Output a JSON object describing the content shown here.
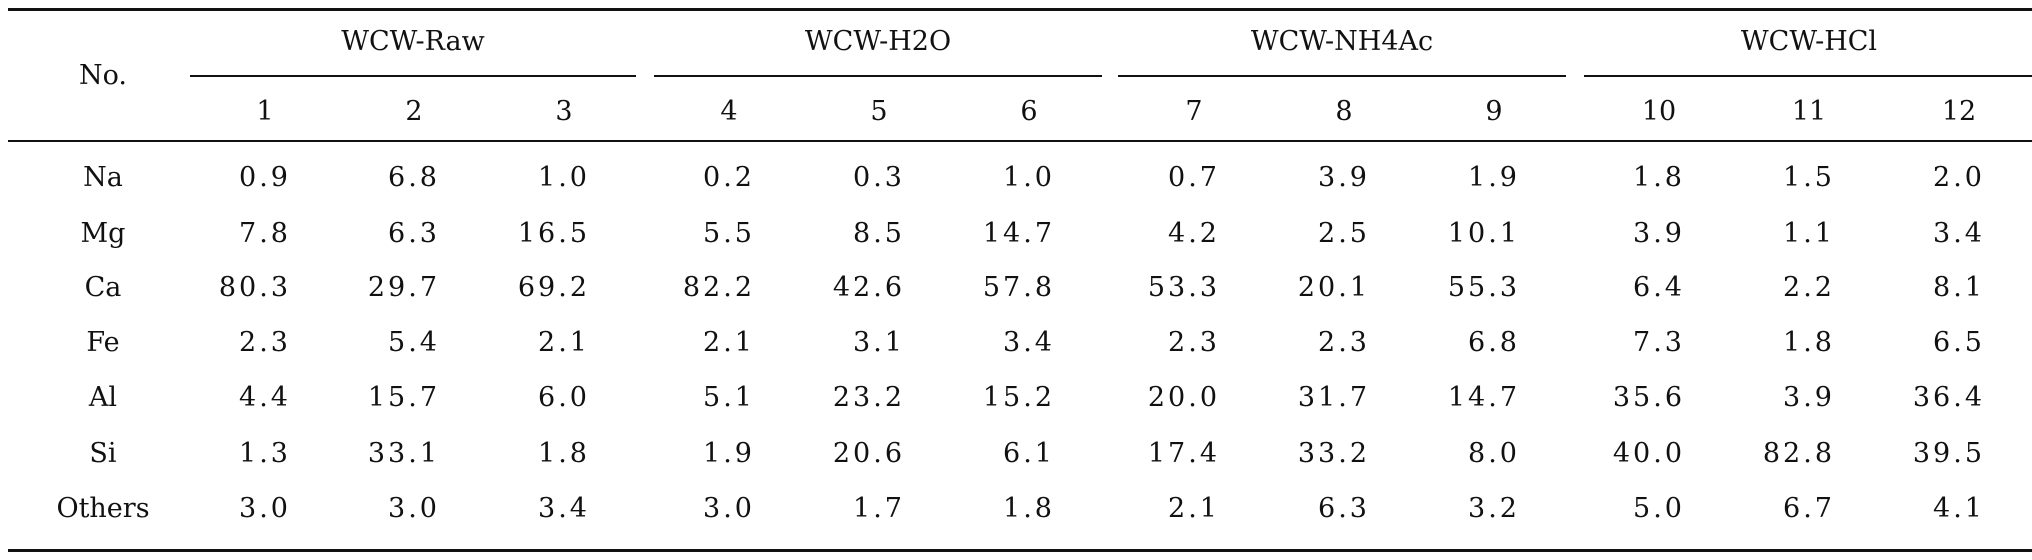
{
  "table": {
    "row_header": "No.",
    "groups": [
      {
        "label": "WCW-Raw",
        "columns": [
          "1",
          "2",
          "3"
        ]
      },
      {
        "label": "WCW-H2O",
        "columns": [
          "4",
          "5",
          "6"
        ]
      },
      {
        "label": "WCW-NH4Ac",
        "columns": [
          "7",
          "8",
          "9"
        ]
      },
      {
        "label": "WCW-HCl",
        "columns": [
          "10",
          "11",
          "12"
        ]
      }
    ],
    "rows": [
      {
        "label": "Na",
        "values": [
          "0.9",
          "6.8",
          "1.0",
          "0.2",
          "0.3",
          "1.0",
          "0.7",
          "3.9",
          "1.9",
          "1.8",
          "1.5",
          "2.0"
        ]
      },
      {
        "label": "Mg",
        "values": [
          "7.8",
          "6.3",
          "16.5",
          "5.5",
          "8.5",
          "14.7",
          "4.2",
          "2.5",
          "10.1",
          "3.9",
          "1.1",
          "3.4"
        ]
      },
      {
        "label": "Ca",
        "values": [
          "80.3",
          "29.7",
          "69.2",
          "82.2",
          "42.6",
          "57.8",
          "53.3",
          "20.1",
          "55.3",
          "6.4",
          "2.2",
          "8.1"
        ]
      },
      {
        "label": "Fe",
        "values": [
          "2.3",
          "5.4",
          "2.1",
          "2.1",
          "3.1",
          "3.4",
          "2.3",
          "2.3",
          "6.8",
          "7.3",
          "1.8",
          "6.5"
        ]
      },
      {
        "label": "Al",
        "values": [
          "4.4",
          "15.7",
          "6.0",
          "5.1",
          "23.2",
          "15.2",
          "20.0",
          "31.7",
          "14.7",
          "35.6",
          "3.9",
          "36.4"
        ]
      },
      {
        "label": "Si",
        "values": [
          "1.3",
          "33.1",
          "1.8",
          "1.9",
          "20.6",
          "6.1",
          "17.4",
          "33.2",
          "8.0",
          "40.0",
          "82.8",
          "39.5"
        ]
      },
      {
        "label": "Others",
        "values": [
          "3.0",
          "3.0",
          "3.4",
          "3.0",
          "1.7",
          "1.8",
          "2.1",
          "6.3",
          "3.2",
          "5.0",
          "6.7",
          "4.1"
        ]
      }
    ]
  }
}
